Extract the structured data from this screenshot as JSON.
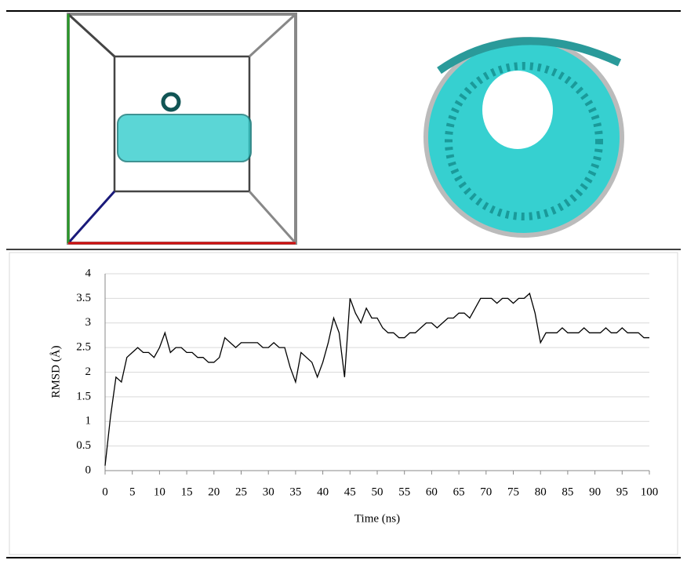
{
  "chart_data": {
    "type": "line",
    "x_label": "Time (ns)",
    "y_label": "RMSD (Å)",
    "xlim": [
      0,
      100
    ],
    "ylim": [
      0,
      4
    ],
    "xticks": [
      0,
      5,
      10,
      15,
      20,
      25,
      30,
      35,
      40,
      45,
      50,
      55,
      60,
      65,
      70,
      75,
      80,
      85,
      90,
      95,
      100
    ],
    "yticks": [
      0,
      0.5,
      1,
      1.5,
      2,
      2.5,
      3,
      3.5,
      4
    ],
    "grid": true,
    "x": [
      0,
      1,
      2,
      3,
      4,
      5,
      6,
      7,
      8,
      9,
      10,
      11,
      12,
      13,
      14,
      15,
      16,
      17,
      18,
      19,
      20,
      21,
      22,
      23,
      24,
      25,
      26,
      27,
      28,
      29,
      30,
      31,
      32,
      33,
      34,
      35,
      36,
      37,
      38,
      39,
      40,
      41,
      42,
      43,
      44,
      45,
      46,
      47,
      48,
      49,
      50,
      51,
      52,
      53,
      54,
      55,
      56,
      57,
      58,
      59,
      60,
      61,
      62,
      63,
      64,
      65,
      66,
      67,
      68,
      69,
      70,
      71,
      72,
      73,
      74,
      75,
      76,
      77,
      78,
      79,
      80,
      81,
      82,
      83,
      84,
      85,
      86,
      87,
      88,
      89,
      90,
      91,
      92,
      93,
      94,
      95,
      96,
      97,
      98,
      99,
      100
    ],
    "series": [
      {
        "color": "#000000",
        "values": [
          0.1,
          1.1,
          1.9,
          1.8,
          2.3,
          2.4,
          2.5,
          2.4,
          2.4,
          2.3,
          2.5,
          2.8,
          2.4,
          2.5,
          2.5,
          2.4,
          2.4,
          2.3,
          2.3,
          2.2,
          2.2,
          2.3,
          2.7,
          2.6,
          2.5,
          2.6,
          2.6,
          2.6,
          2.6,
          2.5,
          2.5,
          2.6,
          2.5,
          2.5,
          2.1,
          1.8,
          2.4,
          2.3,
          2.2,
          1.9,
          2.2,
          2.6,
          3.1,
          2.8,
          1.9,
          3.5,
          3.2,
          3.0,
          3.3,
          3.1,
          3.1,
          2.9,
          2.8,
          2.8,
          2.7,
          2.7,
          2.8,
          2.8,
          2.9,
          3.0,
          3.0,
          2.9,
          3.0,
          3.1,
          3.1,
          3.2,
          3.2,
          3.1,
          3.3,
          3.5,
          3.5,
          3.5,
          3.4,
          3.5,
          3.5,
          3.4,
          3.5,
          3.5,
          3.6,
          3.2,
          2.6,
          2.8,
          2.8,
          2.8,
          2.9,
          2.8,
          2.8,
          2.8,
          2.9,
          2.8,
          2.8,
          2.8,
          2.9,
          2.8,
          2.8,
          2.9,
          2.8,
          2.8,
          2.8,
          2.7,
          2.7
        ]
      }
    ]
  }
}
